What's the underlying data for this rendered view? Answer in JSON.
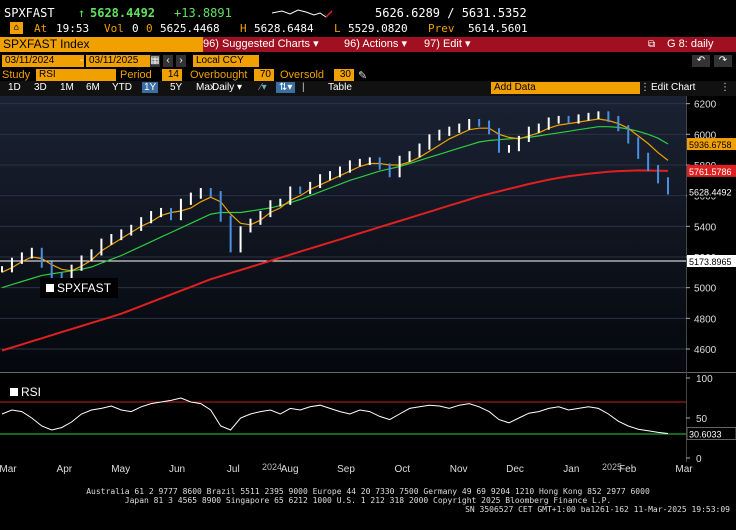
{
  "header": {
    "ticker": "SPXFAST",
    "arrow": "↑",
    "last": "5628.4492",
    "change": "+13.8891",
    "high_low_range": "5626.6289 / 5631.5352",
    "at_label": "At",
    "time": "19:53",
    "vol_label": "Vol",
    "vol": "0",
    "open_label": "0",
    "open": "5625.4468",
    "high_label": "H",
    "high": "5628.6484",
    "low_label": "L",
    "low": "5529.0820",
    "prev_label": "Prev",
    "prev": "5614.5601"
  },
  "menubar": {
    "title": "SPXFAST Index",
    "suggested": "96) Suggested Charts ▾",
    "actions": "96) Actions ▾",
    "edit": "97) Edit ▾",
    "graph": "G 8: daily",
    "accent": "#a01020"
  },
  "controls": {
    "date_from": "03/11/2024",
    "date_to": "03/11/2025",
    "currency": "Local CCY",
    "study_label": "Study",
    "study": "RSI",
    "period_label": "Period",
    "period": "14",
    "overbought_label": "Overbought",
    "overbought": "70",
    "oversold_label": "Oversold",
    "oversold": "30",
    "ranges": [
      "1D",
      "3D",
      "1M",
      "6M",
      "YTD",
      "1Y",
      "5Y",
      "Max"
    ],
    "active_range": "1Y",
    "frequency": "Daily ▾",
    "table": "Table",
    "add_data": "Add Data",
    "edit_chart": "Edit Chart"
  },
  "chart_data": {
    "type": "line",
    "title": "SPXFAST",
    "x_ticks": [
      "Mar",
      "Apr",
      "May",
      "Jun",
      "Jul",
      "Aug",
      "Sep",
      "Oct",
      "Nov",
      "Dec",
      "Jan",
      "Feb",
      "Mar"
    ],
    "year_ticks": [
      "2024",
      "2025"
    ],
    "ylim": [
      4450,
      6250
    ],
    "y_ticks": [
      4600,
      4800,
      5000,
      5200,
      5400,
      5600,
      5800,
      6000,
      6200
    ],
    "price": [
      5120,
      5175,
      5210,
      5240,
      5150,
      5080,
      5060,
      5130,
      5190,
      5230,
      5300,
      5330,
      5360,
      5390,
      5440,
      5480,
      5500,
      5460,
      5560,
      5600,
      5630,
      5610,
      5450,
      5250,
      5380,
      5430,
      5480,
      5550,
      5560,
      5640,
      5630,
      5670,
      5720,
      5740,
      5770,
      5810,
      5820,
      5830,
      5790,
      5740,
      5840,
      5870,
      5920,
      5980,
      6010,
      6030,
      6050,
      6080,
      6070,
      6020,
      5900,
      5910,
      5970,
      6030,
      6050,
      6090,
      6100,
      6090,
      6110,
      6120,
      6130,
      6100,
      6040,
      5960,
      5860,
      5780,
      5700,
      5628
    ],
    "ma_short": [
      5100,
      5130,
      5170,
      5200,
      5190,
      5150,
      5120,
      5110,
      5140,
      5180,
      5240,
      5280,
      5320,
      5360,
      5400,
      5430,
      5470,
      5490,
      5500,
      5520,
      5560,
      5590,
      5560,
      5480,
      5420,
      5410,
      5440,
      5490,
      5520,
      5570,
      5600,
      5640,
      5670,
      5700,
      5730,
      5760,
      5790,
      5810,
      5810,
      5800,
      5800,
      5820,
      5850,
      5890,
      5930,
      5970,
      6000,
      6030,
      6040,
      6040,
      6000,
      5980,
      5970,
      5990,
      6010,
      6040,
      6060,
      6070,
      6080,
      6090,
      6100,
      6090,
      6070,
      6040,
      5990,
      5940,
      5880,
      5830
    ],
    "ma_mid": [
      5000,
      5020,
      5040,
      5060,
      5080,
      5090,
      5100,
      5110,
      5120,
      5135,
      5160,
      5185,
      5210,
      5240,
      5270,
      5300,
      5330,
      5360,
      5390,
      5420,
      5450,
      5480,
      5490,
      5490,
      5490,
      5500,
      5510,
      5520,
      5535,
      5555,
      5575,
      5600,
      5625,
      5650,
      5675,
      5700,
      5720,
      5740,
      5760,
      5775,
      5790,
      5810,
      5830,
      5850,
      5870,
      5890,
      5910,
      5930,
      5950,
      5960,
      5965,
      5970,
      5975,
      5980,
      5990,
      6000,
      6010,
      6020,
      6030,
      6040,
      6050,
      6050,
      6045,
      6035,
      6020,
      6000,
      5975,
      5936.6758
    ],
    "ma_long": [
      4590,
      4610,
      4630,
      4650,
      4670,
      4690,
      4710,
      4730,
      4750,
      4770,
      4790,
      4810,
      4830,
      4855,
      4880,
      4905,
      4930,
      4955,
      4980,
      5005,
      5030,
      5055,
      5075,
      5095,
      5115,
      5135,
      5155,
      5175,
      5195,
      5215,
      5235,
      5255,
      5275,
      5295,
      5315,
      5335,
      5355,
      5375,
      5395,
      5415,
      5435,
      5455,
      5475,
      5495,
      5515,
      5535,
      5555,
      5575,
      5595,
      5612,
      5628,
      5644,
      5660,
      5676,
      5690,
      5704,
      5716,
      5726,
      5735,
      5743,
      5750,
      5756,
      5760,
      5763,
      5765,
      5764,
      5763,
      5761.5786
    ],
    "labels": {
      "last": "5628.4492",
      "ma_mid": "5936.6758",
      "ma_long": "5761.5786",
      "hline": "5173.8965"
    },
    "hline": 5173.8965,
    "rsi": {
      "name": "RSI",
      "ylim": [
        0,
        100
      ],
      "y_ticks": [
        0,
        50,
        100
      ],
      "overbought": 70,
      "oversold": 30,
      "last": "30.6033",
      "values": [
        55,
        60,
        58,
        50,
        40,
        35,
        38,
        45,
        55,
        60,
        62,
        65,
        60,
        58,
        64,
        68,
        70,
        72,
        75,
        70,
        68,
        60,
        40,
        35,
        50,
        55,
        58,
        60,
        55,
        62,
        60,
        64,
        66,
        62,
        58,
        55,
        60,
        58,
        52,
        48,
        55,
        62,
        64,
        66,
        65,
        62,
        66,
        68,
        64,
        58,
        48,
        44,
        50,
        56,
        58,
        62,
        64,
        60,
        62,
        64,
        62,
        55,
        46,
        40,
        36,
        34,
        32,
        30.6
      ]
    },
    "colors": {
      "price": "#ffffff",
      "ma_short": "#f0a000",
      "ma_mid": "#2ecc40",
      "ma_long": "#e02020",
      "hline": "#ffffff"
    }
  },
  "footer": {
    "line1": "Australia 61 2 9777 8600 Brazil 5511 2395 9000 Europe 44 20 7330 7500 Germany 49 69 9204 1210 Hong Kong 852 2977 6000",
    "line2": "Japan 81 3 4565 8900        Singapore 65 6212 1000       U.S. 1 212 318 2000            Copyright 2025 Bloomberg Finance L.P.",
    "line3": "SN 3506527 CET  GMT+1:00 ba1261-162 11-Mar-2025 19:53:09"
  }
}
